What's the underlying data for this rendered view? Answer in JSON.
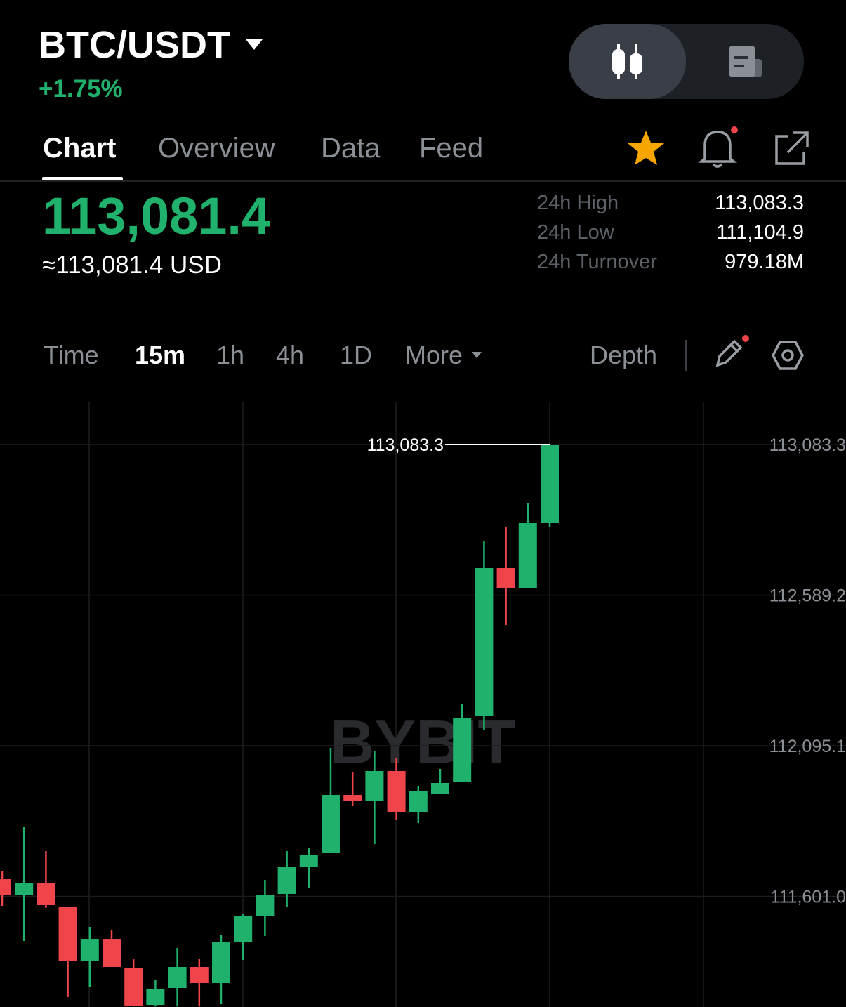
{
  "header": {
    "pair": "BTC/USDT",
    "change": "+1.75%"
  },
  "tabs": [
    "Chart",
    "Overview",
    "Data",
    "Feed"
  ],
  "price": {
    "last": "113,081.4",
    "usd": "≈113,081.4 USD"
  },
  "stats": [
    {
      "label": "24h High",
      "value": "113,083.3"
    },
    {
      "label": "24h Low",
      "value": "111,104.9"
    },
    {
      "label": "24h Turnover",
      "value": "979.18M"
    }
  ],
  "intervals": [
    "Time",
    "15m",
    "1h",
    "4h",
    "1D",
    "More"
  ],
  "depth": "Depth",
  "chart_data": {
    "type": "candlestick",
    "watermark": "BYBIT",
    "categories": [
      null,
      null,
      null,
      null,
      null,
      null,
      null,
      null,
      null,
      null,
      null,
      null,
      null,
      null,
      null,
      null,
      null,
      null,
      null,
      null,
      null,
      null,
      null,
      null,
      null,
      null
    ],
    "open": [
      111657.4,
      111604.5,
      111643.6,
      111567.6,
      111387.9,
      111461.6,
      111364.9,
      111245.0,
      111300.4,
      111369.5,
      111316.5,
      111450.1,
      111537.7,
      111609.1,
      111696.6,
      111742.7,
      111933.9,
      111915.4,
      112012.2,
      111876.3,
      111938.5,
      111977.6,
      112191.8,
      112677.9,
      112611.1,
      112825.3
    ],
    "high": [
      111685.1,
      111830.2,
      111749.6,
      111567.6,
      111500.8,
      111489.3,
      111397.1,
      111328.0,
      111431.7,
      111397.1,
      111473.2,
      111542.3,
      111655.1,
      111749.6,
      111761.1,
      112088.2,
      112007.6,
      112076.7,
      112053.6,
      111961.5,
      112019.1,
      112233.3,
      112767.7,
      112813.8,
      112892.1,
      113083.3
    ],
    "low": [
      111569.9,
      111454.7,
      111563.0,
      111270.4,
      111305.0,
      111369.5,
      111240.0,
      111240.0,
      111240.0,
      111240.0,
      111247.4,
      111392.5,
      111470.8,
      111565.3,
      111627.5,
      111742.7,
      111897.0,
      111772.6,
      111853.2,
      111841.7,
      111938.5,
      111977.6,
      112145.8,
      112491.3,
      112611.1,
      112813.8
    ],
    "close": [
      111604.5,
      111643.6,
      111572.2,
      111387.9,
      111461.6,
      111369.5,
      111242.8,
      111295.8,
      111369.5,
      111316.5,
      111450.1,
      111535.4,
      111606.8,
      111696.6,
      111738.1,
      111933.9,
      111915.4,
      112012.2,
      111876.3,
      111945.4,
      111973.0,
      112187.2,
      112677.9,
      112611.1,
      112825.3,
      113081.4
    ],
    "up_color": "#20b26c",
    "down_color": "#ef454a",
    "ylim": [
      111238.2,
      113223.8
    ],
    "yticks": [
      {
        "value": 113083.3,
        "label": "113,083.3"
      },
      {
        "value": 112589.2,
        "label": "112,589.2"
      },
      {
        "value": 112095.1,
        "label": "112,095.1"
      },
      {
        "value": 111601.0,
        "label": "111,601.0"
      }
    ],
    "grid": true,
    "max_label": {
      "value": 113083.3,
      "label": "113,083.3"
    }
  }
}
